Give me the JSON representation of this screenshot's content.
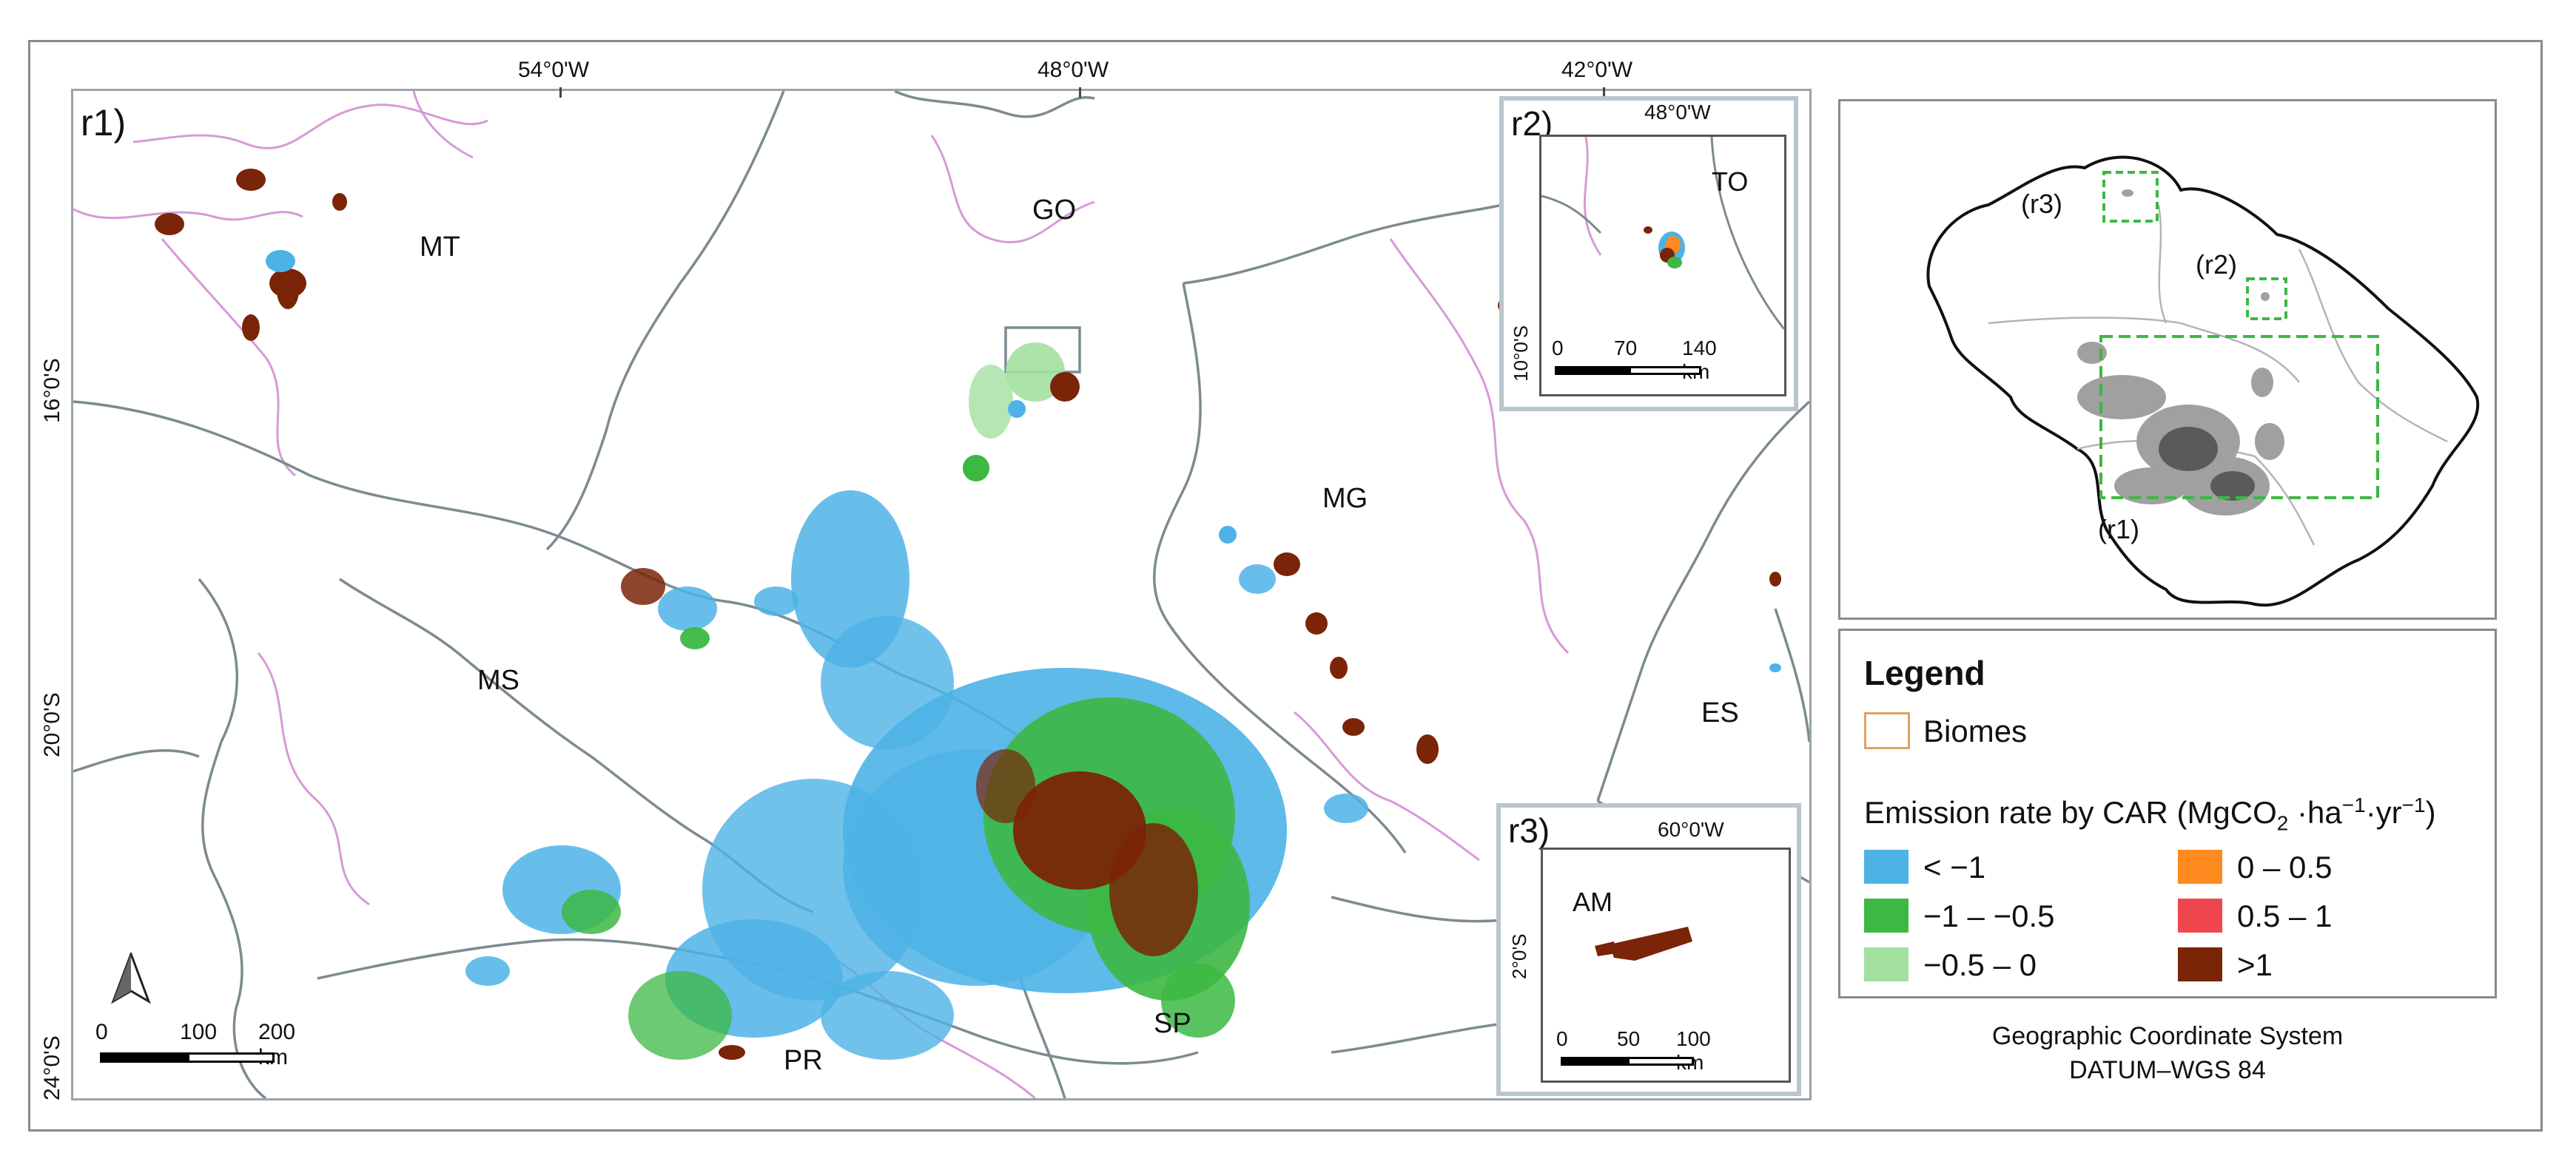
{
  "main_map": {
    "tag": "r1)",
    "top_ticks": [
      "54°0'W",
      "48°0'W",
      "42°0'W"
    ],
    "left_ticks": [
      "16°0'S",
      "20°0'S",
      "24°0'S"
    ],
    "states": [
      "MT",
      "GO",
      "MG",
      "MS",
      "ES",
      "SP",
      "PR"
    ],
    "scale": {
      "labels": [
        "0",
        "100",
        "200 km"
      ]
    }
  },
  "inset_r2": {
    "tag": "r2)",
    "top_tick": "48°0'W",
    "left_tick": "10°0'S",
    "state": "TO",
    "scale": {
      "labels": [
        "0",
        "70",
        "140 km"
      ]
    }
  },
  "inset_r3": {
    "tag": "r3)",
    "top_tick": "60°0'W",
    "left_tick": "2°0'S",
    "state": "AM",
    "scale": {
      "labels": [
        "0",
        "50",
        "100 km"
      ]
    }
  },
  "overview": {
    "labels": [
      "(r3)",
      "(r2)",
      "(r1)"
    ]
  },
  "legend": {
    "title": "Legend",
    "biomes_label": "Biomes",
    "emission_title_prefix": "Emission rate by CAR (MgCO",
    "emission_title_sub": "2",
    "emission_title_suffix": " ·ha",
    "emission_title_sup1": "−1",
    "emission_title_mid": "·yr",
    "emission_title_sup2": "−1",
    "emission_title_end": ")",
    "classes": [
      {
        "label": "< −1",
        "color": "#4db3e6"
      },
      {
        "label": "−1 –  −0.5",
        "color": "#3cb843"
      },
      {
        "label": "−0.5 – 0",
        "color": "#a3e0a0"
      },
      {
        "label": "0 –  0.5",
        "color": "#ff8a1f"
      },
      {
        "label": "0.5 – 1",
        "color": "#f0474f"
      },
      {
        "label": ">1",
        "color": "#7a2408"
      }
    ],
    "biome_color": "#e0a060"
  },
  "crs": {
    "line1": "Geographic Coordinate System",
    "line2": "DATUM–WGS 84"
  },
  "colors": {
    "state_border": "#7c8b90",
    "biome_border": "#d79ad8",
    "highlight_box": "#3cb843"
  }
}
